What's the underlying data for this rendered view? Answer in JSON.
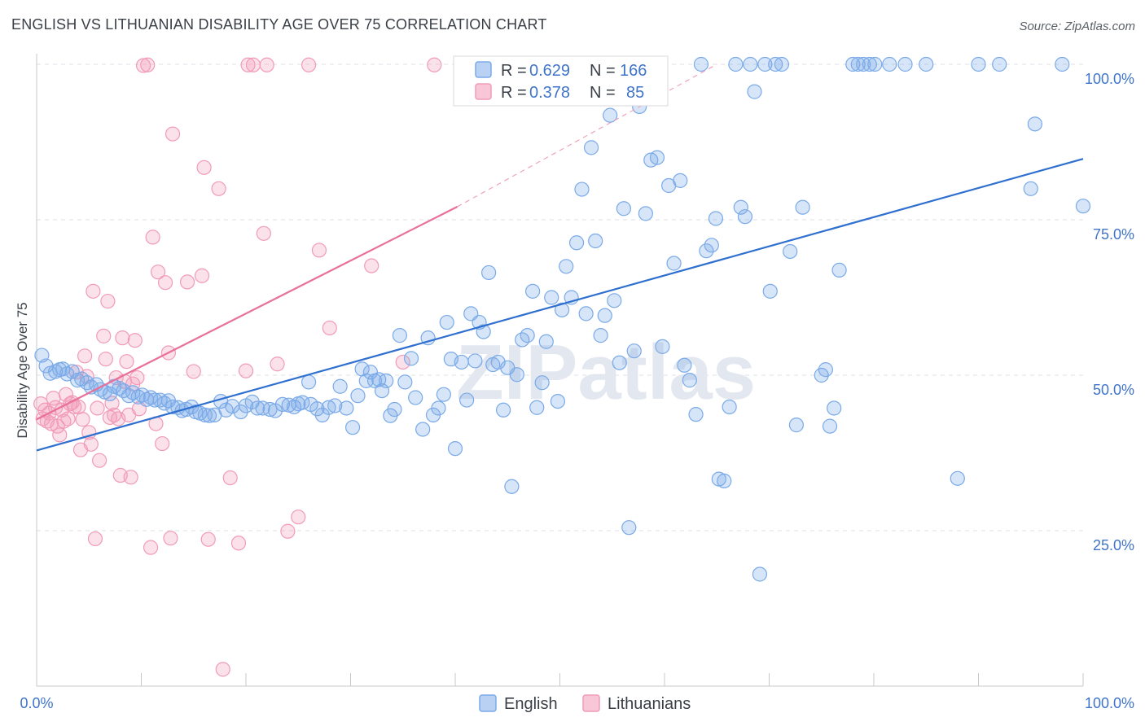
{
  "title": "ENGLISH VS LITHUANIAN DISABILITY AGE OVER 75 CORRELATION CHART",
  "source": "Source: ZipAtlas.com",
  "watermark": "ZIPatlas",
  "legend": {
    "english": {
      "r_label": "R =",
      "r_value": "0.629",
      "n_label": "N =",
      "n_value": "166"
    },
    "lithuanian": {
      "r_label": "R =",
      "r_value": "0.378",
      "n_label": "N =",
      "n_value": "85"
    }
  },
  "bottom_legend": {
    "english": "English",
    "lithuanians": "Lithuanians"
  },
  "chart_data": {
    "type": "scatter",
    "title": "ENGLISH VS LITHUANIAN DISABILITY AGE OVER 75 CORRELATION CHART",
    "xlabel": "",
    "ylabel": "Disability Age Over 75",
    "xlim": [
      0,
      100
    ],
    "ylim": [
      0,
      100
    ],
    "x_ticks": [
      "0.0%",
      "100.0%"
    ],
    "y_ticks": [
      "25.0%",
      "50.0%",
      "75.0%",
      "100.0%"
    ],
    "y_tick_values": [
      25,
      50,
      75,
      100
    ],
    "grid": true,
    "legend_position": "top-center",
    "colors": {
      "english": "#7aaae8",
      "lithuanians": "#f19bb8",
      "english_line": "#2e6fd0",
      "lithuanian_line": "#e8709a"
    },
    "series": [
      {
        "name": "English",
        "r": 0.629,
        "n": 166,
        "trend": {
          "x": [
            0,
            100
          ],
          "y": [
            37.9,
            84.8
          ]
        },
        "points": [
          [
            0.5,
            53.2
          ],
          [
            0.9,
            51.5
          ],
          [
            1.3,
            50.3
          ],
          [
            1.8,
            50.6
          ],
          [
            2.2,
            50.9
          ],
          [
            2.5,
            51.0
          ],
          [
            2.9,
            50.2
          ],
          [
            3.4,
            50.6
          ],
          [
            3.9,
            49.2
          ],
          [
            4.3,
            49.4
          ],
          [
            4.8,
            48.8
          ],
          [
            5.2,
            48.1
          ],
          [
            5.7,
            48.5
          ],
          [
            6.1,
            47.7
          ],
          [
            6.5,
            47.3
          ],
          [
            7.0,
            47.0
          ],
          [
            7.4,
            48.2
          ],
          [
            7.9,
            47.9
          ],
          [
            8.3,
            47.5
          ],
          [
            8.8,
            46.7
          ],
          [
            9.2,
            47.2
          ],
          [
            9.7,
            46.5
          ],
          [
            10.1,
            46.8
          ],
          [
            10.5,
            46.1
          ],
          [
            10.9,
            46.4
          ],
          [
            11.3,
            46.0
          ],
          [
            11.8,
            46.0
          ],
          [
            12.2,
            45.5
          ],
          [
            12.6,
            45.9
          ],
          [
            13.0,
            44.9
          ],
          [
            13.5,
            44.8
          ],
          [
            13.9,
            44.3
          ],
          [
            14.3,
            44.5
          ],
          [
            14.8,
            44.9
          ],
          [
            15.2,
            44.1
          ],
          [
            15.6,
            43.9
          ],
          [
            16.1,
            43.6
          ],
          [
            16.5,
            43.5
          ],
          [
            17.0,
            43.6
          ],
          [
            17.6,
            45.8
          ],
          [
            18.1,
            44.4
          ],
          [
            18.7,
            45.0
          ],
          [
            19.5,
            44.1
          ],
          [
            20.0,
            45.1
          ],
          [
            20.6,
            45.7
          ],
          [
            21.1,
            44.7
          ],
          [
            21.6,
            44.7
          ],
          [
            22.3,
            44.5
          ],
          [
            22.8,
            44.3
          ],
          [
            23.5,
            45.3
          ],
          [
            24.1,
            45.2
          ],
          [
            24.6,
            44.9
          ],
          [
            25.0,
            45.4
          ],
          [
            25.4,
            45.6
          ],
          [
            26.0,
            48.9
          ],
          [
            26.2,
            45.3
          ],
          [
            26.8,
            44.6
          ],
          [
            27.3,
            43.6
          ],
          [
            27.9,
            44.8
          ],
          [
            28.5,
            45.1
          ],
          [
            29.0,
            48.2
          ],
          [
            29.6,
            44.7
          ],
          [
            30.2,
            41.6
          ],
          [
            30.7,
            46.7
          ],
          [
            31.1,
            51.0
          ],
          [
            31.5,
            49.1
          ],
          [
            31.9,
            50.5
          ],
          [
            32.3,
            49.1
          ],
          [
            32.7,
            49.3
          ],
          [
            33.0,
            47.5
          ],
          [
            33.4,
            49.1
          ],
          [
            33.8,
            43.5
          ],
          [
            34.2,
            44.5
          ],
          [
            34.7,
            56.4
          ],
          [
            35.2,
            48.9
          ],
          [
            35.8,
            52.7
          ],
          [
            36.2,
            46.4
          ],
          [
            36.9,
            41.3
          ],
          [
            37.4,
            56.0
          ],
          [
            37.9,
            43.6
          ],
          [
            38.4,
            44.7
          ],
          [
            38.9,
            46.9
          ],
          [
            39.2,
            58.5
          ],
          [
            39.6,
            52.6
          ],
          [
            40.0,
            38.2
          ],
          [
            40.6,
            52.1
          ],
          [
            41.1,
            46.0
          ],
          [
            41.5,
            59.9
          ],
          [
            41.9,
            52.3
          ],
          [
            42.3,
            58.5
          ],
          [
            42.7,
            57.0
          ],
          [
            43.2,
            66.5
          ],
          [
            43.6,
            51.7
          ],
          [
            44.1,
            52.1
          ],
          [
            44.6,
            44.4
          ],
          [
            45.0,
            51.2
          ],
          [
            45.4,
            32.1
          ],
          [
            45.9,
            50.1
          ],
          [
            46.4,
            55.7
          ],
          [
            46.9,
            56.4
          ],
          [
            47.4,
            63.5
          ],
          [
            47.8,
            44.8
          ],
          [
            48.3,
            48.8
          ],
          [
            48.7,
            55.4
          ],
          [
            49.2,
            62.5
          ],
          [
            49.8,
            45.8
          ],
          [
            50.2,
            60.5
          ],
          [
            50.6,
            67.5
          ],
          [
            51.1,
            62.5
          ],
          [
            51.6,
            71.3
          ],
          [
            52.1,
            79.9
          ],
          [
            52.5,
            59.9
          ],
          [
            53.0,
            86.6
          ],
          [
            53.4,
            71.6
          ],
          [
            53.9,
            56.4
          ],
          [
            54.3,
            59.6
          ],
          [
            54.8,
            91.8
          ],
          [
            55.2,
            62.0
          ],
          [
            55.7,
            52.0
          ],
          [
            56.1,
            76.8
          ],
          [
            56.6,
            25.5
          ],
          [
            57.1,
            53.9
          ],
          [
            57.6,
            93.2
          ],
          [
            58.2,
            76.0
          ],
          [
            58.7,
            84.6
          ],
          [
            59.3,
            85.0
          ],
          [
            59.8,
            54.6
          ],
          [
            60.4,
            80.5
          ],
          [
            60.9,
            68.0
          ],
          [
            61.5,
            81.3
          ],
          [
            61.9,
            51.6
          ],
          [
            62.4,
            49.2
          ],
          [
            63.0,
            43.7
          ],
          [
            63.5,
            100
          ],
          [
            64.0,
            70.0
          ],
          [
            64.5,
            70.9
          ],
          [
            64.9,
            75.2
          ],
          [
            65.2,
            33.3
          ],
          [
            65.7,
            33.0
          ],
          [
            66.2,
            44.9
          ],
          [
            66.8,
            100
          ],
          [
            67.3,
            77.0
          ],
          [
            67.7,
            75.5
          ],
          [
            68.2,
            100
          ],
          [
            68.6,
            95.6
          ],
          [
            69.1,
            18.0
          ],
          [
            69.6,
            100
          ],
          [
            70.1,
            63.5
          ],
          [
            70.6,
            100
          ],
          [
            71.2,
            100
          ],
          [
            72.0,
            69.9
          ],
          [
            72.6,
            42.0
          ],
          [
            73.2,
            77.0
          ],
          [
            75.0,
            50.0
          ],
          [
            75.4,
            50.9
          ],
          [
            75.8,
            41.8
          ],
          [
            76.2,
            44.7
          ],
          [
            76.7,
            66.9
          ],
          [
            78.0,
            100
          ],
          [
            78.5,
            100
          ],
          [
            79.0,
            100
          ],
          [
            79.6,
            100
          ],
          [
            80.1,
            100
          ],
          [
            81.5,
            100
          ],
          [
            83.0,
            100
          ],
          [
            85.0,
            100
          ],
          [
            88.0,
            33.4
          ],
          [
            90.0,
            100
          ],
          [
            92.0,
            100
          ],
          [
            95.0,
            80.0
          ],
          [
            95.4,
            90.4
          ],
          [
            98.0,
            100
          ],
          [
            100,
            77.2
          ]
        ]
      },
      {
        "name": "Lithuanians",
        "r": 0.378,
        "n": 85,
        "trend": {
          "x": [
            0,
            40.2
          ],
          "y": [
            42.9,
            77.1
          ]
        },
        "trend_dashed": {
          "x": [
            40.2,
            65
          ],
          "y": [
            77.1,
            100
          ]
        },
        "points": [
          [
            0.4,
            45.4
          ],
          [
            0.6,
            43.0
          ],
          [
            0.8,
            44.4
          ],
          [
            1.0,
            42.6
          ],
          [
            1.2,
            43.9
          ],
          [
            1.4,
            42.2
          ],
          [
            1.6,
            46.3
          ],
          [
            1.8,
            44.8
          ],
          [
            2.0,
            41.8
          ],
          [
            2.2,
            40.4
          ],
          [
            2.4,
            44.4
          ],
          [
            2.6,
            42.6
          ],
          [
            2.8,
            46.9
          ],
          [
            3.0,
            43.0
          ],
          [
            3.2,
            45.4
          ],
          [
            3.4,
            45.6
          ],
          [
            3.6,
            44.9
          ],
          [
            3.8,
            50.5
          ],
          [
            4.0,
            44.9
          ],
          [
            4.2,
            38.0
          ],
          [
            4.4,
            42.9
          ],
          [
            4.6,
            53.1
          ],
          [
            4.8,
            49.8
          ],
          [
            5.0,
            40.8
          ],
          [
            5.2,
            38.9
          ],
          [
            5.4,
            63.5
          ],
          [
            5.6,
            23.7
          ],
          [
            5.8,
            44.7
          ],
          [
            6.0,
            36.3
          ],
          [
            6.4,
            56.3
          ],
          [
            6.6,
            52.6
          ],
          [
            6.8,
            61.9
          ],
          [
            7.0,
            43.2
          ],
          [
            7.2,
            45.5
          ],
          [
            7.4,
            43.6
          ],
          [
            7.6,
            49.6
          ],
          [
            7.8,
            43.0
          ],
          [
            8.0,
            33.9
          ],
          [
            8.2,
            56.0
          ],
          [
            8.4,
            49.0
          ],
          [
            8.6,
            52.2
          ],
          [
            8.8,
            43.6
          ],
          [
            9.0,
            33.6
          ],
          [
            9.2,
            48.6
          ],
          [
            9.4,
            55.6
          ],
          [
            9.6,
            49.6
          ],
          [
            9.8,
            44.6
          ],
          [
            10.2,
            99.8
          ],
          [
            10.6,
            99.9
          ],
          [
            10.9,
            22.3
          ],
          [
            11.1,
            72.2
          ],
          [
            11.4,
            42.2
          ],
          [
            11.6,
            66.6
          ],
          [
            12.0,
            39.0
          ],
          [
            12.3,
            64.9
          ],
          [
            12.6,
            53.6
          ],
          [
            12.8,
            23.8
          ],
          [
            13.0,
            88.8
          ],
          [
            14.4,
            65.0
          ],
          [
            15.0,
            50.6
          ],
          [
            15.8,
            66.0
          ],
          [
            16.0,
            83.4
          ],
          [
            16.4,
            23.6
          ],
          [
            17.4,
            80.0
          ],
          [
            17.8,
            2.7
          ],
          [
            18.5,
            33.5
          ],
          [
            19.3,
            23.0
          ],
          [
            20.0,
            50.7
          ],
          [
            20.2,
            99.9
          ],
          [
            20.7,
            99.9
          ],
          [
            21.7,
            72.8
          ],
          [
            22.0,
            99.9
          ],
          [
            23.0,
            51.8
          ],
          [
            24.0,
            24.9
          ],
          [
            25.0,
            27.2
          ],
          [
            26.0,
            99.9
          ],
          [
            27.0,
            70.1
          ],
          [
            28.0,
            57.6
          ],
          [
            32.0,
            67.6
          ],
          [
            35.0,
            52.1
          ],
          [
            38.0,
            99.9
          ]
        ]
      }
    ]
  }
}
